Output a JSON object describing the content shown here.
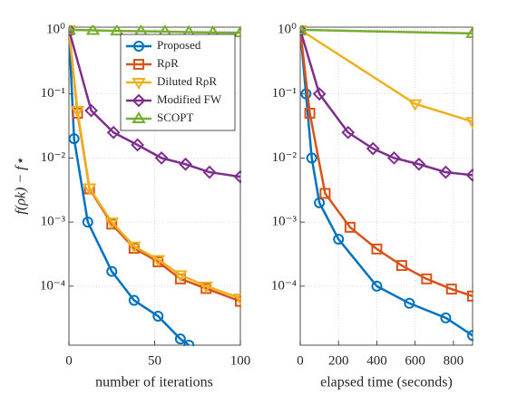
{
  "chart_data": [
    {
      "type": "line",
      "ylabel": "f(ρk) − f⋆",
      "xlabel": "number of iterations",
      "log_y": true,
      "grid": true,
      "legend": "upper right",
      "xlim": [
        0,
        100
      ],
      "xticks": [
        0,
        50,
        100
      ],
      "ylim": [
        1.2e-05,
        1.1
      ],
      "yticks": [
        {
          "value": 1,
          "label": "10⁰"
        },
        {
          "value": 0.1,
          "label": "10⁻¹"
        },
        {
          "value": 0.01,
          "label": "10⁻²"
        },
        {
          "value": 0.001,
          "label": "10⁻³"
        },
        {
          "value": 0.0001,
          "label": "10⁻⁴"
        }
      ],
      "series": [
        {
          "name": "Proposed",
          "color": "#0072BD",
          "marker": "circle",
          "x": [
            0,
            3,
            11,
            25,
            38,
            52,
            65,
            70
          ],
          "values": [
            1,
            0.02,
            0.001,
            0.00017,
            6e-05,
            3.4e-05,
            1.5e-05,
            1.2e-05
          ]
        },
        {
          "name": "RρR",
          "color": "#D95319",
          "marker": "square",
          "x": [
            0,
            5,
            12,
            25,
            38,
            52,
            65,
            80,
            100
          ],
          "values": [
            1,
            0.05,
            0.0033,
            0.00093,
            0.00039,
            0.00024,
            0.00013,
            9.2e-05,
            5.8e-05
          ]
        },
        {
          "name": "Diluted RρR",
          "color": "#EDB120",
          "marker": "triangle-down",
          "x": [
            0,
            5,
            12,
            25,
            38,
            52,
            65,
            80,
            100
          ],
          "values": [
            1,
            0.055,
            0.0034,
            0.001,
            0.00042,
            0.00026,
            0.00015,
            0.0001,
            6.5e-05
          ]
        },
        {
          "name": "Modified FW",
          "color": "#7E2F8E",
          "marker": "diamond",
          "x": [
            0,
            13,
            26,
            40,
            54,
            68,
            82,
            100
          ],
          "values": [
            1,
            0.055,
            0.025,
            0.016,
            0.01,
            0.008,
            0.006,
            0.0051
          ]
        },
        {
          "name": "SCOPT",
          "color": "#77AC30",
          "marker": "triangle-up",
          "x": [
            0,
            14,
            28,
            42,
            56,
            70,
            84,
            100
          ],
          "values": [
            1,
            0.98,
            0.96,
            0.95,
            0.94,
            0.92,
            0.91,
            0.9
          ]
        }
      ]
    },
    {
      "type": "line",
      "xlabel": "elapsed time (seconds)",
      "log_y": true,
      "grid": true,
      "xlim": [
        0,
        900
      ],
      "xticks": [
        0,
        200,
        400,
        600,
        800
      ],
      "ylim": [
        1.2e-05,
        1.1
      ],
      "yticks": [
        {
          "value": 1,
          "label": "10⁰"
        },
        {
          "value": 0.1,
          "label": "10⁻¹"
        },
        {
          "value": 0.01,
          "label": "10⁻²"
        },
        {
          "value": 0.001,
          "label": "10⁻³"
        },
        {
          "value": 0.0001,
          "label": "10⁻⁴"
        }
      ],
      "series": [
        {
          "color": "#0072BD",
          "marker": "circle",
          "x": [
            0,
            30,
            60,
            100,
            200,
            400,
            570,
            760,
            900
          ],
          "values": [
            1,
            0.1,
            0.01,
            0.002,
            0.00054,
            0.0001,
            5.4e-05,
            3.2e-05,
            1.7e-05
          ]
        },
        {
          "color": "#D95319",
          "marker": "square",
          "x": [
            0,
            50,
            130,
            260,
            400,
            530,
            660,
            790,
            900
          ],
          "values": [
            1,
            0.05,
            0.0028,
            0.00083,
            0.00038,
            0.00021,
            0.00013,
            9e-05,
            7e-05
          ]
        },
        {
          "color": "#EDB120",
          "marker": "triangle-down",
          "x": [
            0,
            600,
            900
          ],
          "values": [
            1,
            0.07,
            0.037
          ]
        },
        {
          "color": "#7E2F8E",
          "marker": "diamond",
          "x": [
            0,
            100,
            250,
            380,
            490,
            620,
            760,
            900
          ],
          "values": [
            1,
            0.1,
            0.025,
            0.014,
            0.01,
            0.008,
            0.006,
            0.0054
          ]
        },
        {
          "color": "#77AC30",
          "marker": "triangle-up",
          "x": [
            0,
            900
          ],
          "values": [
            1,
            0.88
          ]
        }
      ]
    }
  ]
}
